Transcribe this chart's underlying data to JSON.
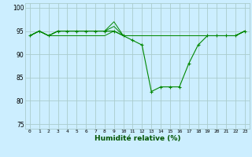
{
  "title": "",
  "xlabel": "Humidité relative (%)",
  "background_color": "#cceeff",
  "grid_color": "#aacccc",
  "line_color": "#008800",
  "xlim": [
    -0.5,
    23.5
  ],
  "ylim": [
    74,
    101
  ],
  "yticks": [
    75,
    80,
    85,
    90,
    95,
    100
  ],
  "xticks": [
    0,
    1,
    2,
    3,
    4,
    5,
    6,
    7,
    8,
    9,
    10,
    11,
    12,
    13,
    14,
    15,
    16,
    17,
    18,
    19,
    20,
    21,
    22,
    23
  ],
  "series": [
    {
      "x": [
        0,
        1,
        2,
        3,
        4,
        5,
        6,
        7,
        8,
        9,
        10,
        11,
        12,
        13,
        14,
        15,
        16,
        17,
        18,
        19,
        20,
        21,
        22,
        23
      ],
      "y": [
        94,
        95,
        94,
        95,
        95,
        95,
        95,
        95,
        95,
        95,
        94,
        93,
        92,
        82,
        83,
        83,
        83,
        88,
        92,
        94,
        94,
        94,
        94,
        95
      ],
      "marker": true
    },
    {
      "x": [
        0,
        1,
        2,
        3,
        4,
        5,
        6,
        7,
        8,
        9,
        10,
        11,
        12,
        13,
        14,
        15,
        16,
        17,
        18,
        19,
        20,
        21,
        22,
        23
      ],
      "y": [
        94,
        95,
        94,
        95,
        95,
        95,
        95,
        95,
        95,
        97,
        94,
        94,
        94,
        94,
        94,
        94,
        94,
        94,
        94,
        94,
        94,
        94,
        94,
        95
      ],
      "marker": false
    },
    {
      "x": [
        0,
        1,
        2,
        3,
        4,
        5,
        6,
        7,
        8,
        9,
        10,
        11,
        12,
        13,
        14,
        15,
        16,
        17,
        18,
        19,
        20,
        21,
        22,
        23
      ],
      "y": [
        94,
        95,
        94,
        95,
        95,
        95,
        95,
        95,
        95,
        96,
        94,
        94,
        94,
        94,
        94,
        94,
        94,
        94,
        94,
        94,
        94,
        94,
        94,
        95
      ],
      "marker": false
    },
    {
      "x": [
        0,
        1,
        2,
        3,
        4,
        5,
        6,
        7,
        8,
        9,
        10,
        11,
        12,
        13,
        14,
        15,
        16,
        17,
        18,
        19,
        20,
        21,
        22,
        23
      ],
      "y": [
        94,
        95,
        94,
        94,
        94,
        94,
        94,
        94,
        94,
        95,
        94,
        94,
        94,
        94,
        94,
        94,
        94,
        94,
        94,
        94,
        94,
        94,
        94,
        95
      ],
      "marker": false
    }
  ]
}
